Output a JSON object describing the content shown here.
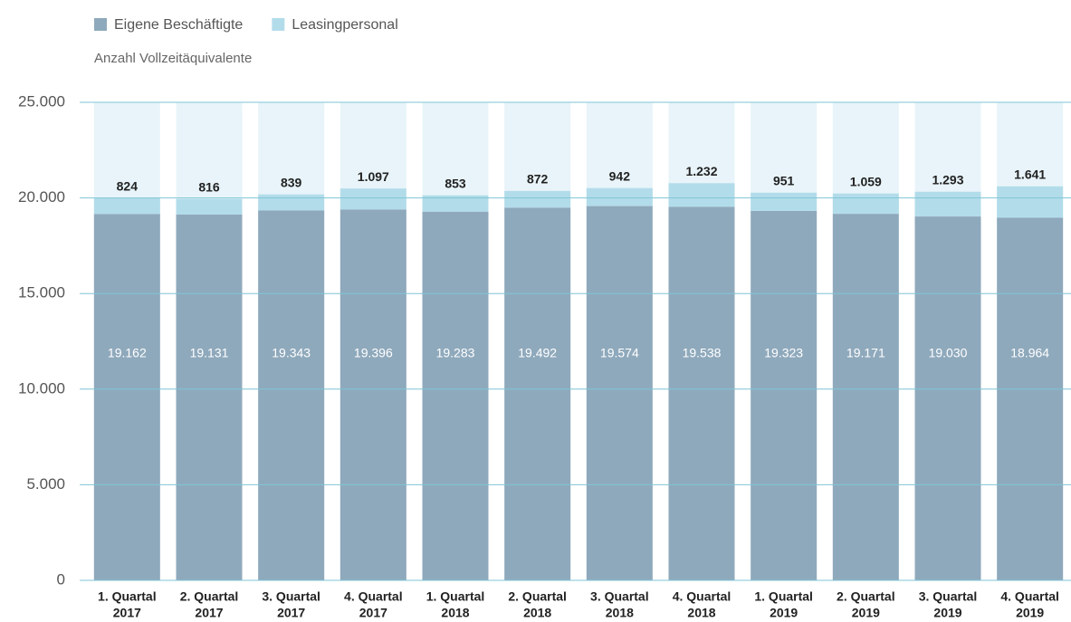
{
  "chart_data": {
    "type": "stacked_bar",
    "legend_labels_note_free": null,
    "subtitle": "Anzahl Vollzeitäquivalente",
    "categories": [
      [
        "1. Quartal",
        "2017"
      ],
      [
        "2. Quartal",
        "2017"
      ],
      [
        "3. Quartal",
        "2017"
      ],
      [
        "4. Quartal",
        "2017"
      ],
      [
        "1. Quartal",
        "2018"
      ],
      [
        "2. Quartal",
        "2018"
      ],
      [
        "3. Quartal",
        "2018"
      ],
      [
        "4. Quartal",
        "2018"
      ],
      [
        "1. Quartal",
        "2019"
      ],
      [
        "2. Quartal",
        "2019"
      ],
      [
        "3. Quartal",
        "2019"
      ],
      [
        "4. Quartal",
        "2019"
      ]
    ],
    "series": [
      {
        "name": "Eigene Beschäftigte",
        "color": "#8fa9bc",
        "values": [
          19162,
          19131,
          19343,
          19396,
          19283,
          19492,
          19574,
          19538,
          19323,
          19171,
          19030,
          18964
        ],
        "value_labels": [
          "19.162",
          "19.131",
          "19.343",
          "19.396",
          "19.283",
          "19.492",
          "19.574",
          "19.538",
          "19.323",
          "19.171",
          "19.030",
          "18.964"
        ]
      },
      {
        "name": "Leasingpersonal",
        "color": "#b3dcea",
        "values": [
          824,
          816,
          839,
          1097,
          853,
          872,
          942,
          1232,
          951,
          1059,
          1293,
          1641
        ],
        "value_labels": [
          "824",
          "816",
          "839",
          "1.097",
          "853",
          "872",
          "942",
          "1.232",
          "951",
          "1.059",
          "1.293",
          "1.641"
        ]
      }
    ],
    "ylim": [
      0,
      25000
    ],
    "yticks": [
      0,
      {
        "value": 5000,
        "label": "5.000"
      },
      {
        "value": 10000,
        "label": "10.000"
      },
      {
        "value": 15000,
        "label": "15.000"
      },
      {
        "value": 20000,
        "label": "20.000"
      },
      {
        "value": 25000,
        "label": "25.000"
      }
    ],
    "grid": true
  }
}
